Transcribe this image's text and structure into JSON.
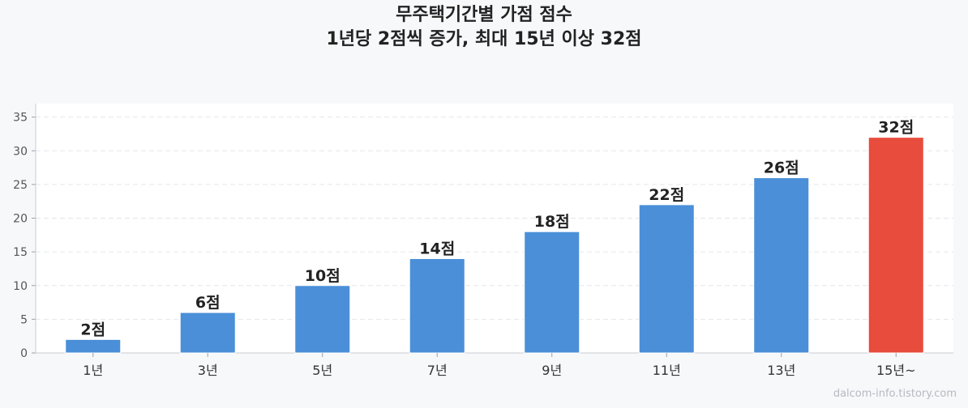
{
  "chart_data": {
    "type": "bar",
    "title": "무주택기간별 가점 점수",
    "subtitle": "1년당 2점씩 증가, 최대 15년 이상 32점",
    "xlabel": "",
    "ylabel": "",
    "categories": [
      "1년",
      "3년",
      "5년",
      "7년",
      "9년",
      "11년",
      "13년",
      "15년~"
    ],
    "values": [
      2,
      6,
      10,
      14,
      18,
      22,
      26,
      32
    ],
    "data_labels": [
      "2점",
      "6점",
      "10점",
      "14점",
      "18점",
      "22점",
      "26점",
      "32점"
    ],
    "ylim": [
      0,
      37
    ],
    "yticks": [
      0,
      5,
      10,
      15,
      20,
      25,
      30,
      35
    ],
    "grid": true,
    "colors": {
      "bar": "#4a8fd8",
      "highlight": "#e74c3c",
      "highlight_index": 7
    }
  },
  "watermark": "dalcom-info.tistory.com"
}
